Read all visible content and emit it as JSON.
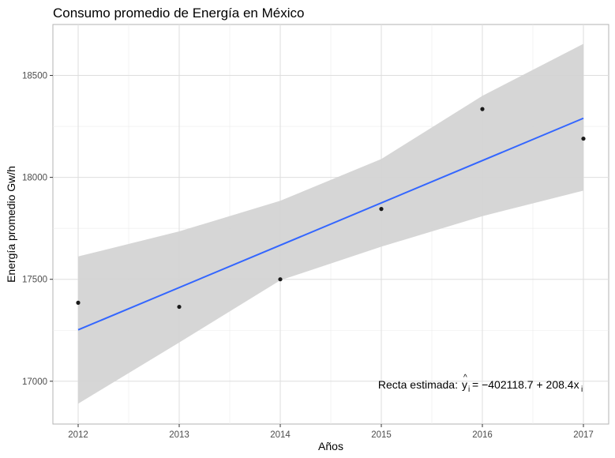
{
  "chart_data": {
    "type": "scatter",
    "title": "Consumo promedio de Energía en México",
    "xlabel": "Años",
    "ylabel": "Energía promedio Gw/h",
    "x": [
      2012,
      2013,
      2014,
      2015,
      2016,
      2017
    ],
    "y": [
      17385,
      17365,
      17500,
      17845,
      18335,
      18190
    ],
    "xticks": [
      2012,
      2013,
      2014,
      2015,
      2016,
      2017
    ],
    "yticks": [
      17000,
      17500,
      18000,
      18500
    ],
    "xlim": [
      2011.75,
      2017.25
    ],
    "ylim": [
      16790,
      18750
    ],
    "grid": true,
    "legend": "none",
    "fit_line": {
      "intercept": -402118.7,
      "slope": 208.4,
      "x": [
        2012,
        2017
      ],
      "y": [
        17252,
        18290
      ],
      "color": "#3366FF"
    },
    "confidence_band": {
      "x": [
        2012,
        2013,
        2014,
        2015,
        2016,
        2017
      ],
      "lower": [
        16890,
        17190,
        17495,
        17660,
        17810,
        17935
      ],
      "upper": [
        17612,
        17735,
        17885,
        18090,
        18400,
        18655
      ],
      "color": "#D3D3D3"
    },
    "annotation": {
      "prefix": "Recta estimada:",
      "symbol": "y",
      "hat": "^",
      "subscript": "i",
      "equation": "= −402118.7 + 208.4x"
    }
  }
}
